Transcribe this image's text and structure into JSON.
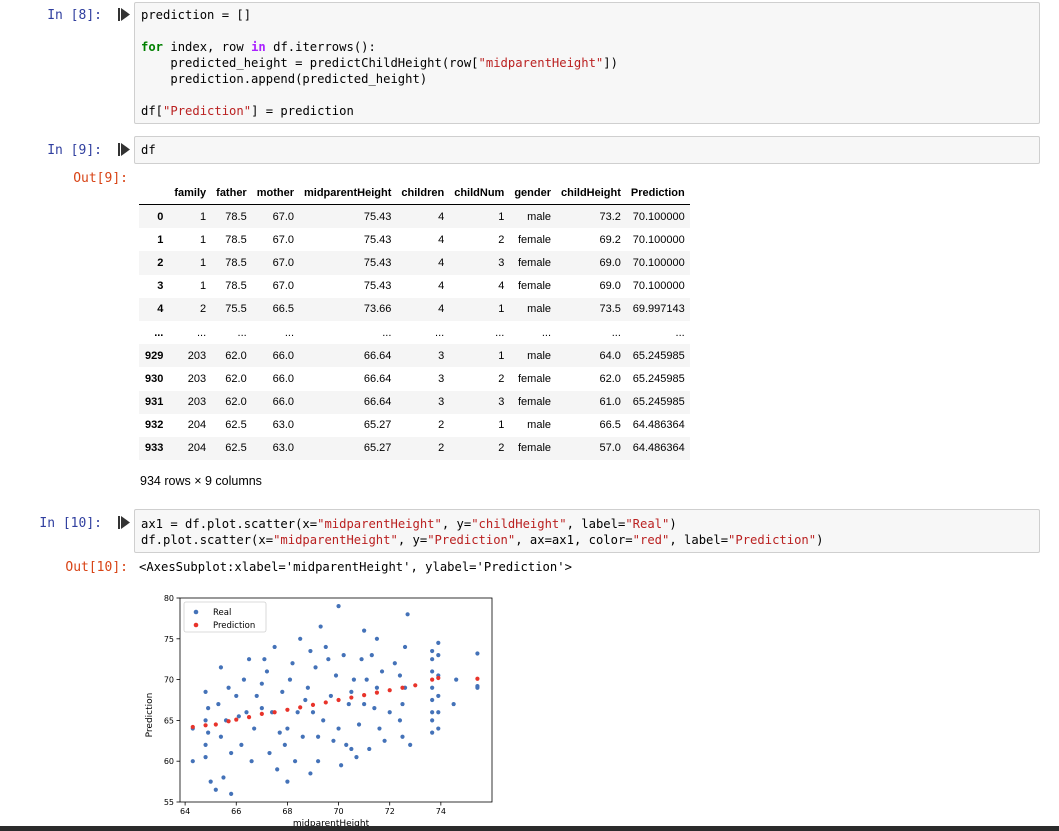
{
  "cells": {
    "c8": {
      "prompt": "In [8]:",
      "code_lines": {
        "l1": "prediction = []",
        "l3a": "for",
        "l3b": " index, row ",
        "l3c": "in",
        "l3d": " df.iterrows():",
        "l4a": "    predicted_height = predictChildHeight(row[",
        "l4b": "\"midparentHeight\"",
        "l4c": "])",
        "l5": "    prediction.append(predicted_height)",
        "l7a": "df[",
        "l7b": "\"Prediction\"",
        "l7c": "] = prediction"
      }
    },
    "c9": {
      "prompt": "In [9]:",
      "code": "df",
      "out_prompt": "Out[9]:",
      "columns": [
        "",
        "family",
        "father",
        "mother",
        "midparentHeight",
        "children",
        "childNum",
        "gender",
        "childHeight",
        "Prediction"
      ],
      "rows": [
        [
          "0",
          "1",
          "78.5",
          "67.0",
          "75.43",
          "4",
          "1",
          "male",
          "73.2",
          "70.100000"
        ],
        [
          "1",
          "1",
          "78.5",
          "67.0",
          "75.43",
          "4",
          "2",
          "female",
          "69.2",
          "70.100000"
        ],
        [
          "2",
          "1",
          "78.5",
          "67.0",
          "75.43",
          "4",
          "3",
          "female",
          "69.0",
          "70.100000"
        ],
        [
          "3",
          "1",
          "78.5",
          "67.0",
          "75.43",
          "4",
          "4",
          "female",
          "69.0",
          "70.100000"
        ],
        [
          "4",
          "2",
          "75.5",
          "66.5",
          "73.66",
          "4",
          "1",
          "male",
          "73.5",
          "69.997143"
        ],
        [
          "...",
          "...",
          "...",
          "...",
          "...",
          "...",
          "...",
          "...",
          "...",
          "..."
        ],
        [
          "929",
          "203",
          "62.0",
          "66.0",
          "66.64",
          "3",
          "1",
          "male",
          "64.0",
          "65.245985"
        ],
        [
          "930",
          "203",
          "62.0",
          "66.0",
          "66.64",
          "3",
          "2",
          "female",
          "62.0",
          "65.245985"
        ],
        [
          "931",
          "203",
          "62.0",
          "66.0",
          "66.64",
          "3",
          "3",
          "female",
          "61.0",
          "65.245985"
        ],
        [
          "932",
          "204",
          "62.5",
          "63.0",
          "65.27",
          "2",
          "1",
          "male",
          "66.5",
          "64.486364"
        ],
        [
          "933",
          "204",
          "62.5",
          "63.0",
          "65.27",
          "2",
          "2",
          "female",
          "57.0",
          "64.486364"
        ]
      ],
      "shape_text": "934 rows × 9 columns"
    },
    "c10": {
      "prompt": "In [10]:",
      "out_prompt": "Out[10]:",
      "l1a": "ax1 = df.plot.scatter(x=",
      "l1b": "\"midparentHeight\"",
      "l1c": ", y=",
      "l1d": "\"childHeight\"",
      "l1e": ", label=",
      "l1f": "\"Real\"",
      "l1g": ")",
      "l2a": "df.plot.scatter(x=",
      "l2b": "\"midparentHeight\"",
      "l2c": ", y=",
      "l2d": "\"Prediction\"",
      "l2e": ", ax=ax1, color=",
      "l2f": "\"red\"",
      "l2g": ", label=",
      "l2h": "\"Prediction\"",
      "l2i": ")",
      "output_text": "<AxesSubplot:xlabel='midparentHeight', ylabel='Prediction'>"
    }
  },
  "chart_data": {
    "type": "scatter",
    "xlabel": "midparentHeight",
    "ylabel": "Prediction",
    "xlim": [
      63.8,
      76.0
    ],
    "ylim": [
      55,
      80
    ],
    "xticks": [
      64,
      66,
      68,
      70,
      72,
      74
    ],
    "yticks": [
      55,
      60,
      65,
      70,
      75,
      80
    ],
    "legend": "top-left",
    "grid": false,
    "series": [
      {
        "name": "Real",
        "color": "#4472b8",
        "points": [
          [
            75.43,
            73.2
          ],
          [
            75.43,
            69.2
          ],
          [
            75.43,
            69.0
          ],
          [
            73.66,
            73.5
          ],
          [
            73.66,
            72.5
          ],
          [
            73.66,
            71.0
          ],
          [
            73.66,
            69.0
          ],
          [
            73.66,
            67.5
          ],
          [
            73.66,
            66.0
          ],
          [
            73.66,
            65.0
          ],
          [
            73.66,
            63.5
          ],
          [
            73.9,
            74.5
          ],
          [
            73.9,
            73.0
          ],
          [
            73.9,
            70.5
          ],
          [
            73.9,
            68.0
          ],
          [
            73.9,
            66.0
          ],
          [
            73.9,
            64.0
          ],
          [
            74.5,
            67.0
          ],
          [
            74.6,
            70.0
          ],
          [
            72.7,
            78.0
          ],
          [
            72.6,
            74.0
          ],
          [
            72.2,
            72.0
          ],
          [
            72.4,
            70.5
          ],
          [
            72.6,
            69.0
          ],
          [
            72.5,
            67.0
          ],
          [
            72.4,
            65.0
          ],
          [
            72.5,
            63.0
          ],
          [
            72.8,
            62.0
          ],
          [
            71.5,
            75.0
          ],
          [
            71.3,
            73.0
          ],
          [
            71.7,
            71.0
          ],
          [
            71.5,
            69.0
          ],
          [
            71.4,
            66.5
          ],
          [
            71.6,
            64.0
          ],
          [
            71.8,
            62.5
          ],
          [
            71.2,
            61.5
          ],
          [
            70.0,
            79.0
          ],
          [
            71.0,
            76.0
          ],
          [
            70.2,
            73.0
          ],
          [
            70.6,
            70.0
          ],
          [
            70.4,
            67.0
          ],
          [
            70.8,
            64.5
          ],
          [
            70.3,
            62.0
          ],
          [
            70.7,
            60.5
          ],
          [
            70.1,
            59.5
          ],
          [
            69.3,
            76.5
          ],
          [
            69.5,
            74.0
          ],
          [
            69.1,
            71.5
          ],
          [
            69.7,
            68.0
          ],
          [
            69.4,
            65.0
          ],
          [
            69.8,
            62.5
          ],
          [
            69.2,
            60.0
          ],
          [
            68.5,
            75.0
          ],
          [
            68.2,
            72.0
          ],
          [
            68.8,
            69.0
          ],
          [
            68.4,
            66.0
          ],
          [
            68.6,
            63.0
          ],
          [
            68.3,
            60.0
          ],
          [
            68.9,
            58.5
          ],
          [
            68.0,
            57.5
          ],
          [
            67.5,
            74.0
          ],
          [
            67.2,
            71.0
          ],
          [
            67.8,
            68.5
          ],
          [
            67.4,
            66.0
          ],
          [
            67.7,
            63.5
          ],
          [
            67.3,
            61.0
          ],
          [
            67.6,
            59.0
          ],
          [
            66.5,
            72.5
          ],
          [
            66.3,
            70.0
          ],
          [
            66.8,
            68.0
          ],
          [
            66.4,
            66.0
          ],
          [
            66.7,
            64.0
          ],
          [
            66.2,
            62.0
          ],
          [
            66.6,
            60.0
          ],
          [
            65.4,
            71.5
          ],
          [
            65.7,
            69.0
          ],
          [
            65.3,
            67.0
          ],
          [
            65.6,
            65.0
          ],
          [
            65.4,
            63.0
          ],
          [
            65.8,
            61.0
          ],
          [
            65.5,
            58.0
          ],
          [
            65.2,
            56.5
          ],
          [
            64.8,
            68.5
          ],
          [
            64.9,
            66.5
          ],
          [
            64.8,
            65.0
          ],
          [
            64.9,
            63.5
          ],
          [
            64.8,
            62.0
          ],
          [
            64.8,
            60.5
          ],
          [
            65.0,
            57.5
          ],
          [
            64.3,
            64.0
          ],
          [
            64.3,
            60.0
          ],
          [
            65.8,
            56.0
          ],
          [
            66.0,
            68.0
          ],
          [
            66.1,
            65.5
          ],
          [
            67.0,
            69.5
          ],
          [
            67.0,
            66.5
          ],
          [
            68.1,
            70.0
          ],
          [
            68.0,
            64.0
          ],
          [
            68.7,
            67.5
          ],
          [
            69.0,
            66.0
          ],
          [
            69.9,
            70.5
          ],
          [
            70.0,
            64.0
          ],
          [
            70.5,
            68.5
          ],
          [
            71.0,
            67.0
          ],
          [
            71.1,
            70.0
          ],
          [
            72.0,
            66.0
          ],
          [
            69.6,
            72.5
          ],
          [
            68.9,
            73.5
          ],
          [
            67.1,
            72.5
          ],
          [
            70.9,
            72.5
          ],
          [
            69.2,
            63.0
          ],
          [
            67.9,
            62.0
          ],
          [
            70.5,
            61.5
          ]
        ]
      },
      {
        "name": "Prediction",
        "color": "#e8332a",
        "points": [
          [
            64.3,
            64.2
          ],
          [
            64.8,
            64.4
          ],
          [
            65.2,
            64.5
          ],
          [
            65.7,
            64.9
          ],
          [
            66.0,
            65.1
          ],
          [
            66.5,
            65.4
          ],
          [
            67.0,
            65.8
          ],
          [
            67.5,
            66.0
          ],
          [
            68.0,
            66.3
          ],
          [
            68.5,
            66.6
          ],
          [
            69.0,
            66.9
          ],
          [
            69.5,
            67.2
          ],
          [
            70.0,
            67.5
          ],
          [
            70.5,
            67.8
          ],
          [
            71.0,
            68.1
          ],
          [
            71.5,
            68.4
          ],
          [
            72.0,
            68.7
          ],
          [
            72.5,
            69.0
          ],
          [
            73.0,
            69.3
          ],
          [
            73.66,
            70.0
          ],
          [
            73.9,
            70.2
          ],
          [
            75.43,
            70.1
          ]
        ]
      }
    ]
  }
}
